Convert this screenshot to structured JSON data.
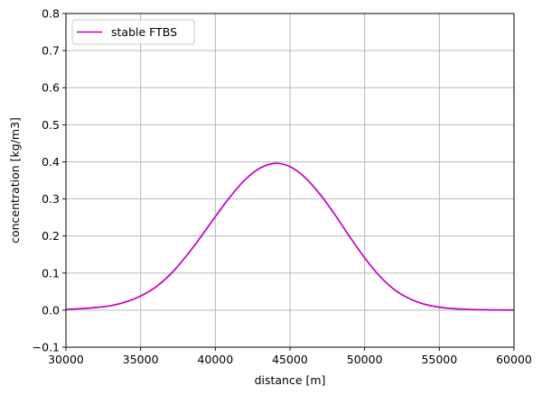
{
  "chart_data": {
    "type": "line",
    "xlabel": "distance [m]",
    "ylabel": "concentration [kg/m3]",
    "xlim": [
      30000,
      60000
    ],
    "ylim": [
      -0.1,
      0.8
    ],
    "xticks": [
      30000,
      35000,
      40000,
      45000,
      50000,
      55000,
      60000
    ],
    "yticks": [
      -0.1,
      0.0,
      0.1,
      0.2,
      0.3,
      0.4,
      0.5,
      0.6,
      0.7,
      0.8
    ],
    "grid": true,
    "legend_position": "top-left",
    "series": [
      {
        "name": "stable FTBS",
        "color": "#bf00bf",
        "x": [
          30000,
          31000,
          32000,
          33000,
          34000,
          35000,
          36000,
          37000,
          38000,
          39000,
          40000,
          41000,
          42000,
          43000,
          44000,
          45000,
          46000,
          47000,
          48000,
          49000,
          50000,
          51000,
          52000,
          53000,
          54000,
          55000,
          56000,
          57000,
          58000,
          59000,
          60000
        ],
        "y": [
          0.002,
          0.004,
          0.007,
          0.012,
          0.022,
          0.038,
          0.062,
          0.097,
          0.143,
          0.196,
          0.252,
          0.306,
          0.352,
          0.383,
          0.396,
          0.387,
          0.358,
          0.313,
          0.258,
          0.198,
          0.141,
          0.092,
          0.055,
          0.031,
          0.016,
          0.008,
          0.004,
          0.002,
          0.001,
          0.0005,
          0.0002
        ]
      }
    ]
  }
}
